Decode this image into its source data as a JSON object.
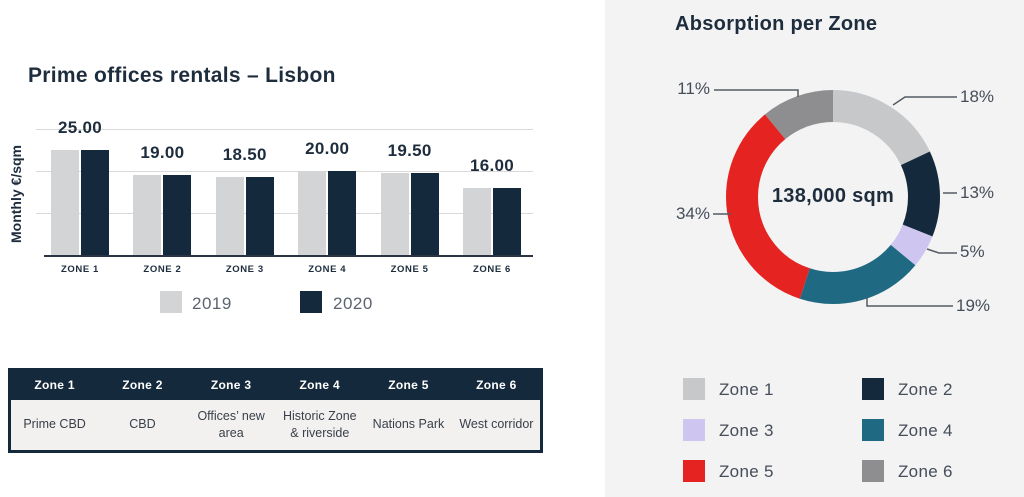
{
  "colors": {
    "navy": "#142a3c",
    "bar_2019": "#d3d4d6",
    "bar_2020": "#142a3c",
    "gridline": "#d9d9d9",
    "panel_bg": "#f3f3f4",
    "leader_line": "#555a63"
  },
  "chart_data": [
    {
      "type": "bar",
      "title": "Prime offices rentals – Lisbon",
      "xlabel": "",
      "ylabel": "Monthly €/sqm",
      "ylim": [
        0,
        30
      ],
      "gridlines": [
        10,
        20,
        30
      ],
      "grid": true,
      "legend_position": "bottom",
      "categories": [
        "ZONE 1",
        "ZONE 2",
        "ZONE 3",
        "ZONE 4",
        "ZONE 5",
        "ZONE 6"
      ],
      "series": [
        {
          "name": "2019",
          "color": "#d3d4d6",
          "values": [
            25.0,
            19.0,
            18.5,
            20.0,
            19.5,
            16.0
          ]
        },
        {
          "name": "2020",
          "color": "#142a3c",
          "values": [
            25.0,
            19.0,
            18.5,
            20.0,
            19.5,
            16.0
          ]
        }
      ],
      "bar_labels": [
        "25.00",
        "19.00",
        "18.50",
        "20.00",
        "19.50",
        "16.00"
      ]
    },
    {
      "type": "pie",
      "subtype": "donut",
      "title": "Absorption per Zone",
      "center_label": "138,000 sqm",
      "legend_position": "bottom",
      "labels": [
        "Zone 1",
        "Zone 2",
        "Zone 3",
        "Zone 4",
        "Zone 5",
        "Zone 6"
      ],
      "values": [
        18,
        13,
        5,
        19,
        34,
        11
      ],
      "pct_labels": [
        "18%",
        "13%",
        "5%",
        "19%",
        "34%",
        "11%"
      ],
      "colors": [
        "#c7c8ca",
        "#142a3c",
        "#cec6f1",
        "#1f6a82",
        "#e52421",
        "#8e8e90"
      ]
    }
  ],
  "table": {
    "headers": [
      "Zone 1",
      "Zone 2",
      "Zone 3",
      "Zone 4",
      "Zone 5",
      "Zone 6"
    ],
    "cells": [
      "Prime CBD",
      "CBD",
      "Offices’ new area",
      "Historic Zone & riverside",
      "Nations Park",
      "West corridor"
    ]
  }
}
